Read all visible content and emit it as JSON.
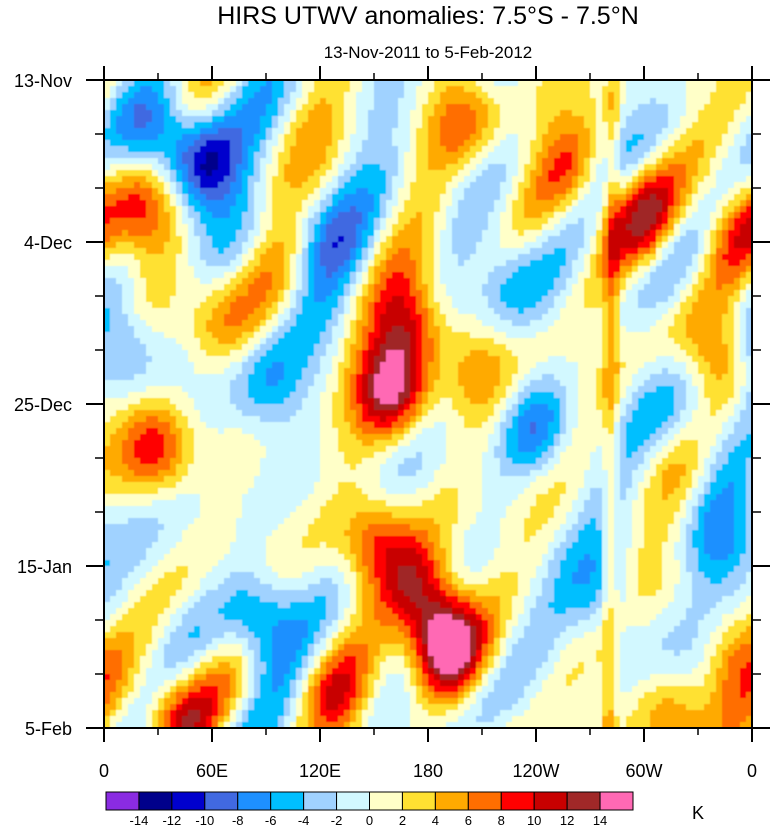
{
  "chart_data": {
    "type": "heatmap",
    "title": "HIRS UTWV anomalies: 7.5°S - 7.5°N",
    "subtitle": "13-Nov-2011 to 5-Feb-2012",
    "x_ticks": [
      "0",
      "60E",
      "120E",
      "180",
      "120W",
      "60W",
      "0"
    ],
    "x_tick_values": [
      0,
      60,
      120,
      180,
      240,
      300,
      360
    ],
    "xlim": [
      0,
      360
    ],
    "y_ticks": [
      "13-Nov",
      "4-Dec",
      "25-Dec",
      "15-Jan",
      "5-Feb"
    ],
    "y_tick_values": [
      0,
      21,
      42,
      63,
      84
    ],
    "ylim": [
      0,
      84
    ],
    "colorbar": {
      "units": "K",
      "levels": [
        "-14",
        "-12",
        "-10",
        "-8",
        "-6",
        "-4",
        "-2",
        "0",
        "2",
        "4",
        "6",
        "8",
        "10",
        "12",
        "14"
      ],
      "colors": [
        "#8a2be2",
        "#00008b",
        "#0000cd",
        "#4169e1",
        "#1e90ff",
        "#00bfff",
        "#a0d2ff",
        "#d2f8ff",
        "#ffffc8",
        "#ffe132",
        "#ffaa00",
        "#ff6e00",
        "#ff0000",
        "#c80000",
        "#a02828",
        "#ff69b4"
      ]
    },
    "features": [
      {
        "lon": 190,
        "day": 73,
        "amplitude": 16
      },
      {
        "lon": 160,
        "day": 40,
        "amplitude": 13
      },
      {
        "lon": 170,
        "day": 32,
        "amplitude": 9
      },
      {
        "lon": 55,
        "day": 11,
        "amplitude": -11
      },
      {
        "lon": 30,
        "day": 7,
        "amplitude": -7
      },
      {
        "lon": 85,
        "day": 70,
        "amplitude": -8
      },
      {
        "lon": 10,
        "day": 35,
        "amplitude": -7
      },
      {
        "lon": 240,
        "day": 45,
        "amplitude": -6
      },
      {
        "lon": 225,
        "day": 25,
        "amplitude": -5
      },
      {
        "lon": 330,
        "day": 45,
        "amplitude": -4
      },
      {
        "lon": 90,
        "day": 40,
        "amplitude": -5
      },
      {
        "lon": 260,
        "day": 12,
        "amplitude": 7
      },
      {
        "lon": 30,
        "day": 48,
        "amplitude": 9
      },
      {
        "lon": 20,
        "day": 17,
        "amplitude": 8
      },
      {
        "lon": 300,
        "day": 18,
        "amplitude": 7
      },
      {
        "lon": 200,
        "day": 5,
        "amplitude": 6
      },
      {
        "lon": 340,
        "day": 35,
        "amplitude": 6
      },
      {
        "lon": 315,
        "day": 83,
        "amplitude": 7
      },
      {
        "lon": 350,
        "day": 75,
        "amplitude": 6
      },
      {
        "lon": 40,
        "day": 82,
        "amplitude": 8
      },
      {
        "lon": 150,
        "day": 60,
        "amplitude": 8
      },
      {
        "lon": 175,
        "day": 66,
        "amplitude": 10
      },
      {
        "lon": 130,
        "day": 80,
        "amplitude": 6
      },
      {
        "lon": 280,
        "day": 68,
        "amplitude": -6
      },
      {
        "lon": 345,
        "day": 60,
        "amplitude": -5
      },
      {
        "lon": 120,
        "day": 20,
        "amplitude": -5
      },
      {
        "lon": 205,
        "day": 37,
        "amplitude": 5
      },
      {
        "lon": 350,
        "day": 20,
        "amplitude": 7
      },
      {
        "lon": 60,
        "day": 30,
        "amplitude": 5
      }
    ]
  }
}
